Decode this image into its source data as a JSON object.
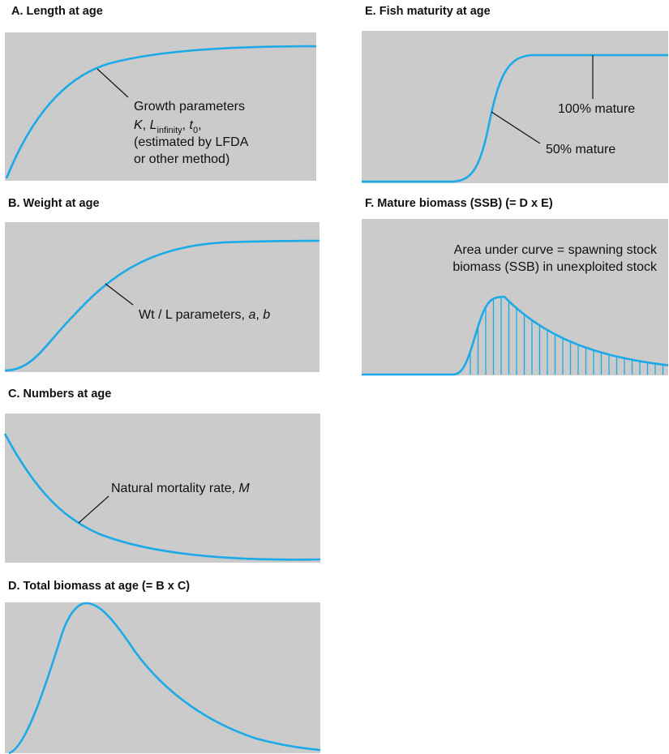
{
  "panels": {
    "a": {
      "title": "A.  Length at age",
      "annotation": {
        "line1": "Growth parameters",
        "k": "K",
        "sep1": ", ",
        "l": "L",
        "l_sub": "infinity",
        "sep2": ", ",
        "t": "t",
        "t_sub": "0",
        "sep3": ",",
        "line3": "(estimated by LFDA",
        "line4": "or other method)"
      }
    },
    "b": {
      "title": "B.  Weight at age",
      "annotation": {
        "prefix": "Wt / L parameters, ",
        "a": "a",
        "sep": ", ",
        "b": "b"
      }
    },
    "c": {
      "title": "C.  Numbers at age",
      "annotation": {
        "prefix": "Natural mortality rate, ",
        "m": "M"
      }
    },
    "d": {
      "title": "D.  Total biomass at age (= B x C)"
    },
    "e": {
      "title": "E.  Fish maturity at age",
      "label_100": "100% mature",
      "label_50": "50% mature"
    },
    "f": {
      "title": "F.  Mature biomass (SSB) (= D x E)",
      "annotation": {
        "line1": "Area under curve = spawning stock",
        "line2": "biomass (SSB) in unexploited stock"
      }
    }
  },
  "colors": {
    "curve": "#1aaae8",
    "panel_bg": "#cbcbcb",
    "text": "#111111"
  }
}
